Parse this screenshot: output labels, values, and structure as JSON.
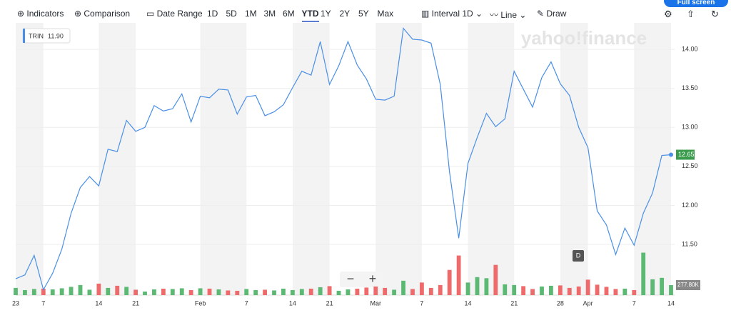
{
  "toolbar": {
    "indicators": "Indicators",
    "comparison": "Comparison",
    "date_range": "Date Range",
    "ranges": [
      "1D",
      "5D",
      "1M",
      "3M",
      "6M",
      "YTD",
      "1Y",
      "2Y",
      "5Y",
      "Max"
    ],
    "interval": "Interval",
    "interval_value": "1D",
    "line": "Line",
    "draw": "Draw",
    "full_screen": "Full screen"
  },
  "watermark": "yahoo!finance",
  "marker": "D",
  "chart_data": {
    "type": "line",
    "legend": {
      "symbol": "TRIN",
      "value": {
        "value": 11.9,
        "label": "11.90"
      }
    },
    "categories": [
      "23",
      null,
      null,
      "7",
      null,
      null,
      null,
      null,
      null,
      "14",
      null,
      null,
      null,
      "21",
      null,
      null,
      null,
      null,
      null,
      null,
      "Feb",
      null,
      null,
      null,
      null,
      "7",
      null,
      null,
      null,
      null,
      "14",
      null,
      null,
      null,
      "21",
      null,
      null,
      null,
      null,
      "Mar",
      null,
      null,
      null,
      null,
      "7",
      null,
      null,
      null,
      null,
      "14",
      null,
      null,
      null,
      null,
      "21",
      null,
      null,
      null,
      null,
      "28",
      null,
      null,
      "Apr",
      null,
      null,
      null,
      null,
      "7",
      null,
      null,
      null,
      "14"
    ],
    "series": [
      {
        "name": "TRIN",
        "color": "#4a8fe7",
        "values": [
          11.06,
          11.11,
          11.36,
          10.92,
          11.13,
          11.44,
          11.9,
          12.23,
          12.37,
          12.25,
          12.72,
          12.69,
          13.09,
          12.95,
          13.0,
          13.28,
          13.21,
          13.24,
          13.43,
          13.07,
          13.4,
          13.38,
          13.49,
          13.48,
          13.17,
          13.39,
          13.41,
          13.15,
          13.2,
          13.29,
          13.51,
          13.72,
          13.67,
          14.1,
          13.55,
          13.79,
          14.1,
          13.8,
          13.62,
          13.36,
          13.35,
          13.4,
          14.27,
          14.13,
          14.12,
          14.08,
          13.55,
          12.43,
          11.58,
          12.54,
          12.87,
          13.18,
          13.01,
          13.11,
          13.72,
          13.49,
          13.26,
          13.64,
          13.84,
          13.56,
          13.41,
          13.0,
          12.74,
          11.93,
          11.75,
          11.37,
          11.71,
          11.49,
          11.9,
          12.16,
          12.64,
          12.65
        ],
        "last_label": "12.65"
      },
      {
        "name": "Volume",
        "axis": "y2",
        "up_color": "#5bb974",
        "down_color": "#ef6a6a",
        "values": [
          200,
          140,
          170,
          180,
          160,
          190,
          230,
          280,
          150,
          320,
          200,
          260,
          230,
          150,
          100,
          160,
          180,
          170,
          190,
          140,
          190,
          180,
          160,
          130,
          120,
          170,
          140,
          150,
          130,
          180,
          140,
          170,
          180,
          220,
          250,
          120,
          160,
          180,
          210,
          240,
          200,
          150,
          400,
          170,
          350,
          200,
          280,
          700,
          1100,
          350,
          500,
          470,
          840,
          300,
          280,
          250,
          170,
          240,
          260,
          270,
          200,
          240,
          430,
          290,
          230,
          170,
          180,
          140,
          1180,
          440,
          480,
          277.8
        ],
        "last_label": "277.80K"
      }
    ],
    "ylim": [
      10.85,
      14.34
    ],
    "yticks": [
      {
        "value": 14,
        "label": "14.00"
      },
      {
        "value": 13.5,
        "label": "13.50"
      },
      {
        "value": 13,
        "label": "13.00"
      },
      {
        "value": 12.5,
        "label": "12.50"
      },
      {
        "value": 12,
        "label": "12.00"
      },
      {
        "value": 11.5,
        "label": "11.50"
      }
    ],
    "y2lim": [
      0,
      7560
    ],
    "grid": true
  }
}
